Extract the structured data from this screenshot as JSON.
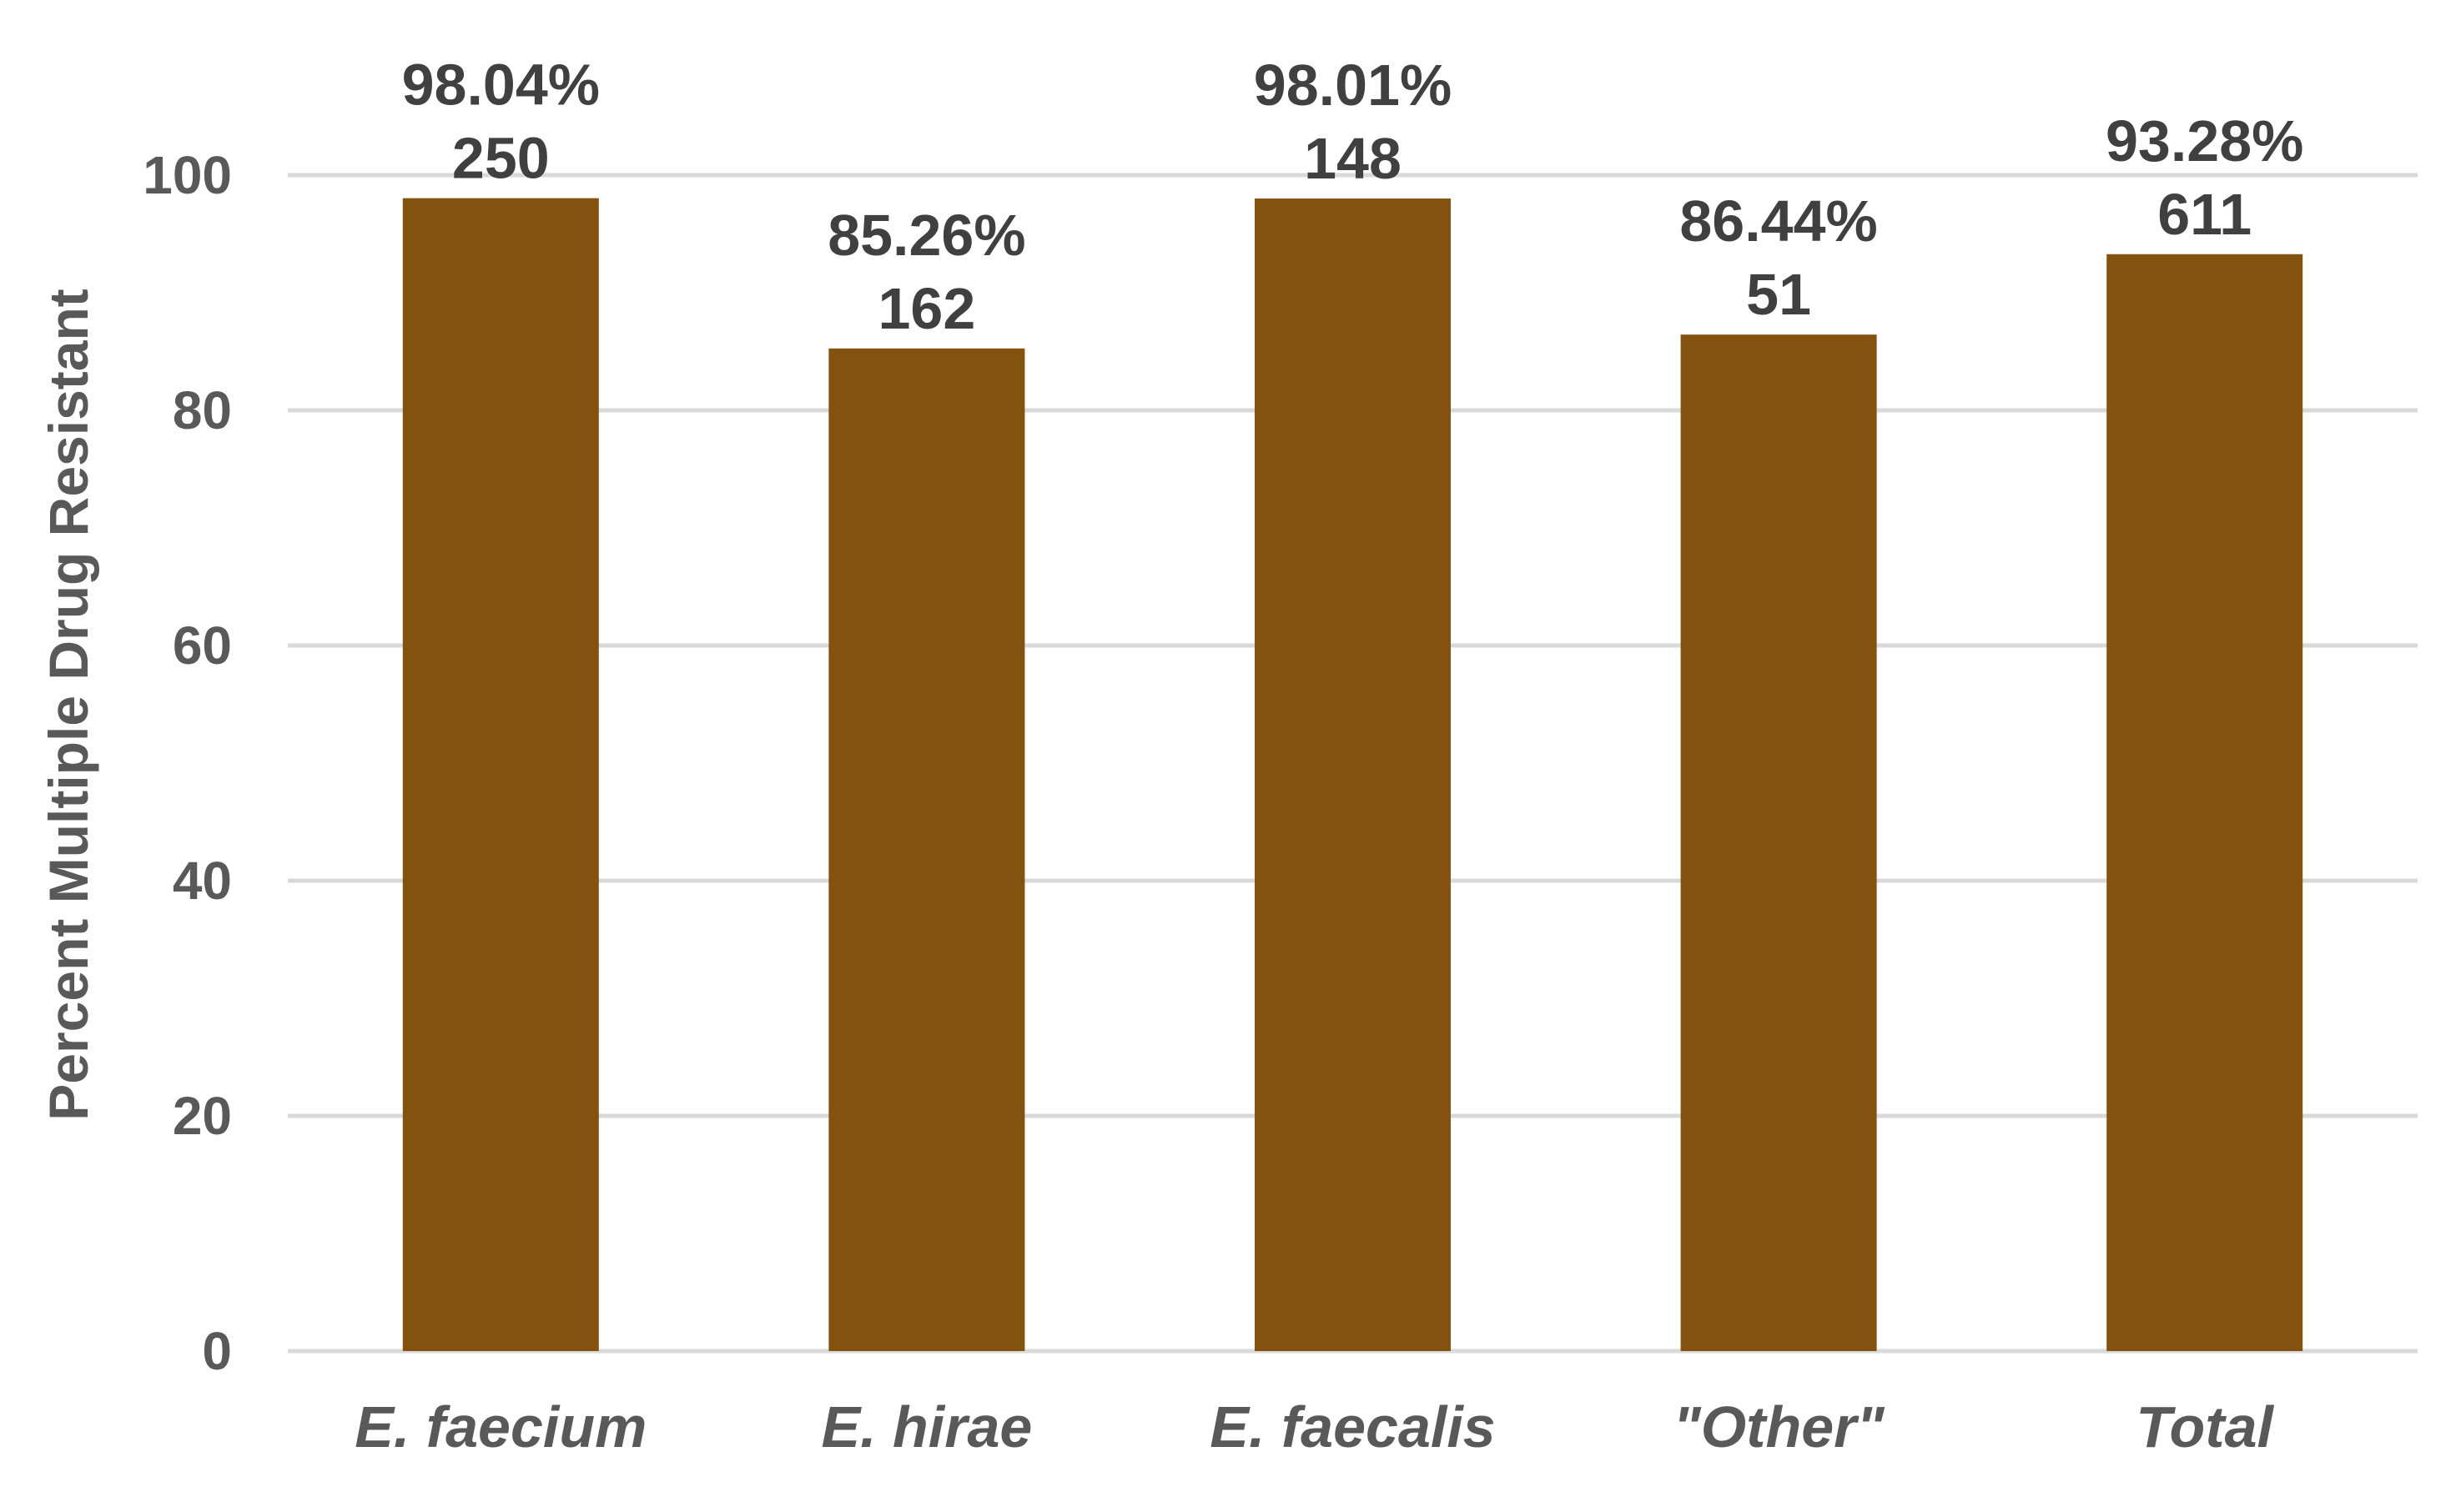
{
  "chart_data": {
    "type": "bar",
    "categories": [
      "E. faecium",
      "E. hirae",
      "E. faecalis",
      "\"Other\"",
      "Total"
    ],
    "values": [
      98.04,
      85.26,
      98.01,
      86.44,
      93.28
    ],
    "percent_labels": [
      "98.04%",
      "85.26%",
      "98.01%",
      "86.44%",
      "93.28%"
    ],
    "count_labels": [
      "250",
      "162",
      "148",
      "51",
      "611"
    ],
    "title": "",
    "xlabel": "",
    "ylabel": "Percent Multiple Drug Resistant",
    "ylim": [
      0,
      100
    ],
    "yticks": [
      0,
      20,
      40,
      60,
      80,
      100
    ],
    "grid": true,
    "legend": "none",
    "bar_color": "#83520F",
    "grid_color": "#D9D9D9"
  }
}
